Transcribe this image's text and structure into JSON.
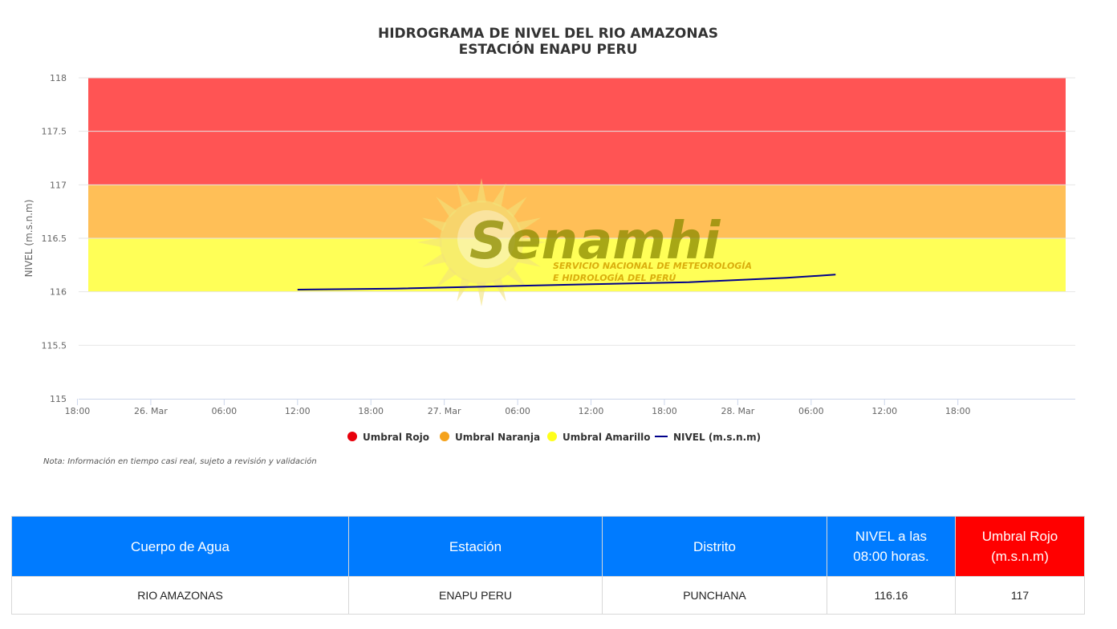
{
  "chart_data": {
    "type": "line",
    "title": "HIDROGRAMA DE NIVEL DEL RIO AMAZONAS",
    "subtitle": "ESTACIÓN ENAPU PERU",
    "ylabel": "NIVEL (m.s.n.m)",
    "xlabel": "",
    "ylim": [
      115,
      118
    ],
    "yticks": [
      "115",
      "115.5",
      "116",
      "116.5",
      "117",
      "117.5",
      "118"
    ],
    "xlim_hours": [
      -5.9,
      75.6
    ],
    "xticks": [
      {
        "label": "18:00",
        "h": -6
      },
      {
        "label": "26. Mar",
        "h": 0
      },
      {
        "label": "06:00",
        "h": 6
      },
      {
        "label": "12:00",
        "h": 12
      },
      {
        "label": "18:00",
        "h": 18
      },
      {
        "label": "27. Mar",
        "h": 24
      },
      {
        "label": "06:00",
        "h": 30
      },
      {
        "label": "12:00",
        "h": 36
      },
      {
        "label": "18:00",
        "h": 42
      },
      {
        "label": "28. Mar",
        "h": 48
      },
      {
        "label": "06:00",
        "h": 54
      },
      {
        "label": "12:00",
        "h": 60
      },
      {
        "label": "18:00",
        "h": 66
      }
    ],
    "bands": [
      {
        "name": "Umbral Rojo",
        "from": 117,
        "to": 118,
        "color": "#ff5454"
      },
      {
        "name": "Umbral Naranja",
        "from": 116.5,
        "to": 117,
        "color": "#ffbf57"
      },
      {
        "name": "Umbral Amarillo",
        "from": 116,
        "to": 116.5,
        "color": "#ffff57"
      }
    ],
    "series": [
      {
        "name": "NIVEL (m.s.n.m)",
        "color": "#00008b",
        "x_hours": [
          12,
          20,
          28,
          36,
          44,
          52,
          56
        ],
        "x_labels": [
          "26. Mar 12:00",
          "26. Mar 20:00",
          "27. Mar 04:00",
          "27. Mar 12:00",
          "27. Mar 20:00",
          "28. Mar 04:00",
          "28. Mar 08:00"
        ],
        "values": [
          116.02,
          116.03,
          116.05,
          116.07,
          116.09,
          116.13,
          116.16
        ]
      }
    ],
    "grid": true,
    "legend": [
      {
        "label": "Umbral Rojo",
        "color": "#e8000b"
      },
      {
        "label": "Umbral Naranja",
        "color": "#f5a21b"
      },
      {
        "label": "Umbral Amarillo",
        "color": "#ffff1a"
      },
      {
        "label": "NIVEL (m.s.n.m)",
        "color": "#00008b"
      }
    ],
    "legend_position": "bottom-center"
  },
  "watermark": {
    "name": "Senamhi",
    "line1": "SERVICIO NACIONAL DE METEOROLOGÍA",
    "line2": "E HIDROLOGÍA DEL PERÚ"
  },
  "note": "Nota: Información en tiempo casi real, sujeto a revisión y validación",
  "table": {
    "headers": [
      "Cuerpo de Agua",
      "Estación",
      "Distrito",
      "NIVEL a las",
      "08:00 horas.",
      "Umbral Rojo",
      "(m.s.n.m)"
    ],
    "row": {
      "cuerpo": "RIO AMAZONAS",
      "estacion": "ENAPU PERU",
      "distrito": "PUNCHANA",
      "nivel": "116.16",
      "umbral_rojo": "117"
    },
    "colors": {
      "header": "#007bff",
      "red_header": "#ff0000"
    }
  }
}
